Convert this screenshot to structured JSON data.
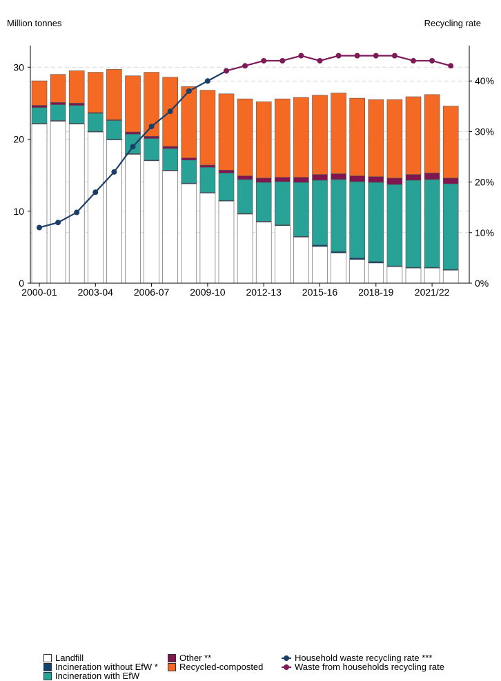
{
  "chart_data": {
    "type": "bar",
    "ylabel_left": "Million tonnes",
    "ylabel_right": "Recycling rate",
    "ylim_left": [
      0,
      33
    ],
    "ylim_right": [
      0,
      47
    ],
    "left_ticks": [
      0,
      10,
      20,
      30
    ],
    "right_ticks": [
      "0%",
      "10%",
      "20%",
      "30%",
      "40%"
    ],
    "right_tick_values": [
      0,
      10,
      20,
      30,
      40
    ],
    "grid": true,
    "legend_position": "bottom",
    "categories": [
      "2000-01",
      "2001-02",
      "2002-03",
      "2003-04",
      "2004-05",
      "2005-06",
      "2006-07",
      "2007-08",
      "2008-09",
      "2009-10",
      "2010-11",
      "2011-12",
      "2012-13",
      "2013-14",
      "2014-15",
      "2015-16",
      "2016-17",
      "2017-18",
      "2018-19",
      "2019-20",
      "2020-21",
      "2021-22",
      "2022-23"
    ],
    "x_tick_labels": [
      "2000-01",
      "2003-04",
      "2006-07",
      "2009-10",
      "2012-13",
      "2015-16",
      "2018-19",
      "2021/22"
    ],
    "x_tick_indices": [
      0,
      3,
      6,
      9,
      12,
      15,
      18,
      21
    ],
    "stacked_series": [
      {
        "name": "Landfill",
        "color": "#ffffff",
        "values": [
          22.1,
          22.5,
          22.1,
          21.0,
          19.9,
          17.9,
          17.0,
          15.6,
          13.8,
          12.5,
          11.4,
          9.6,
          8.5,
          8.0,
          6.4,
          5.1,
          4.2,
          3.3,
          2.8,
          2.3,
          2.1,
          2.1,
          1.8
        ]
      },
      {
        "name": "Incineration without EfW *",
        "color": "#12436d",
        "values": [
          0.1,
          0.1,
          0.1,
          0.1,
          0.1,
          0.1,
          0.1,
          0.1,
          0.1,
          0.1,
          0.1,
          0.1,
          0.1,
          0.1,
          0.1,
          0.2,
          0.2,
          0.2,
          0.2,
          0.1,
          0.1,
          0.1,
          0.1
        ]
      },
      {
        "name": "Incineration with EfW",
        "color": "#28a197",
        "values": [
          2.2,
          2.2,
          2.5,
          2.5,
          2.6,
          2.7,
          3.0,
          3.0,
          3.2,
          3.5,
          3.8,
          4.7,
          5.4,
          6.0,
          7.5,
          9.0,
          10.0,
          10.6,
          11.0,
          11.3,
          12.1,
          12.2,
          11.9
        ]
      },
      {
        "name": "Other **",
        "color": "#801650",
        "values": [
          0.3,
          0.3,
          0.3,
          0.1,
          0.1,
          0.3,
          0.3,
          0.3,
          0.3,
          0.3,
          0.4,
          0.5,
          0.6,
          0.6,
          0.7,
          0.8,
          0.8,
          0.8,
          0.8,
          0.9,
          0.8,
          0.9,
          0.8
        ]
      },
      {
        "name": "Recycled-composted",
        "color": "#f46a25",
        "values": [
          3.4,
          3.9,
          4.5,
          5.6,
          7.0,
          7.8,
          8.9,
          9.6,
          9.9,
          10.4,
          10.6,
          10.7,
          10.6,
          10.9,
          11.1,
          11.0,
          11.2,
          10.8,
          10.7,
          10.9,
          10.8,
          10.9,
          10.0
        ]
      }
    ],
    "line_series": [
      {
        "name": "Household waste recycling rate ***",
        "color": "#1d3e66",
        "values": [
          11,
          12,
          14,
          18,
          22,
          27,
          31,
          34,
          38,
          40,
          42,
          null,
          null,
          null,
          null,
          null,
          null,
          null,
          null,
          null,
          null,
          null,
          null
        ]
      },
      {
        "name": "Waste from households recycling rate",
        "color": "#7d1b59",
        "values": [
          null,
          null,
          null,
          null,
          null,
          null,
          null,
          null,
          null,
          null,
          42,
          43,
          44,
          44,
          45,
          44,
          45,
          45,
          45,
          45,
          44,
          44,
          43
        ]
      }
    ]
  }
}
